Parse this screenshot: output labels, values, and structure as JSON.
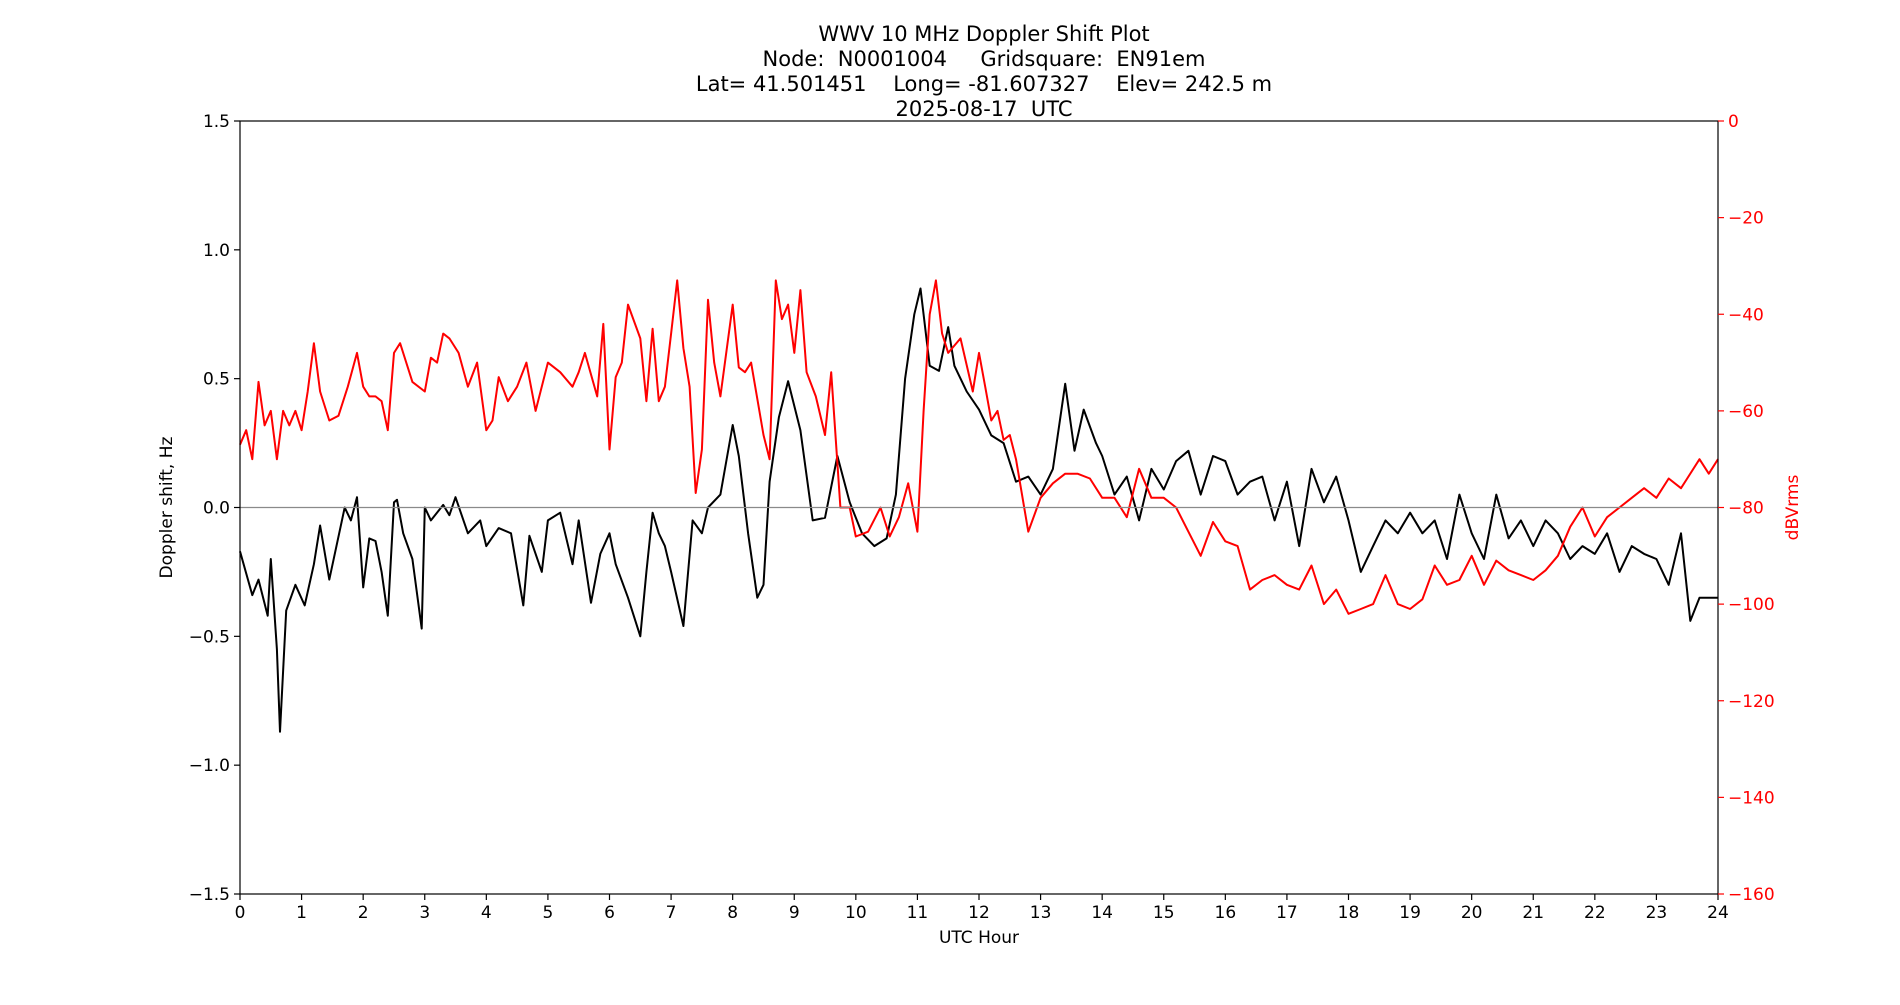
{
  "chart_data": {
    "type": "line",
    "title_lines": [
      "WWV 10 MHz Doppler Shift Plot",
      "Node:  N0001004     Gridsquare:  EN91em",
      "Lat= 41.501451    Long= -81.607327    Elev= 242.5 m",
      "2025-08-17  UTC"
    ],
    "xlabel": "UTC Hour",
    "ylabel_left": "Doppler shift, Hz",
    "ylabel_right": "dBVrms",
    "xlim": [
      0,
      24
    ],
    "ylim_left": [
      -1.5,
      1.5
    ],
    "ylim_right": [
      -160,
      0
    ],
    "x_ticks": [
      "0",
      "1",
      "2",
      "3",
      "4",
      "5",
      "6",
      "7",
      "8",
      "9",
      "10",
      "11",
      "12",
      "13",
      "14",
      "15",
      "16",
      "17",
      "18",
      "19",
      "20",
      "21",
      "22",
      "23",
      "24"
    ],
    "y_ticks_left": [
      "1.5",
      "1.0",
      "0.5",
      "0.0",
      "−0.5",
      "−1.0",
      "−1.5"
    ],
    "y_ticks_left_values": [
      1.5,
      1.0,
      0.5,
      0.0,
      -0.5,
      -1.0,
      -1.5
    ],
    "y_ticks_right": [
      "0",
      "−20",
      "−40",
      "−60",
      "−80",
      "−100",
      "−120",
      "−140",
      "−160"
    ],
    "y_ticks_right_values": [
      0,
      -20,
      -40,
      -60,
      -80,
      -100,
      -120,
      -140,
      -160
    ],
    "zero_line": 0,
    "series": [
      {
        "axis": "left",
        "color": "#000000",
        "x": [
          0,
          0.2,
          0.3,
          0.45,
          0.5,
          0.6,
          0.65,
          0.75,
          0.9,
          1.05,
          1.2,
          1.3,
          1.45,
          1.7,
          1.8,
          1.9,
          2.0,
          2.1,
          2.2,
          2.3,
          2.4,
          2.5,
          2.55,
          2.65,
          2.8,
          2.95,
          3.0,
          3.1,
          3.3,
          3.4,
          3.5,
          3.7,
          3.9,
          4.0,
          4.2,
          4.4,
          4.6,
          4.7,
          4.9,
          5.0,
          5.2,
          5.4,
          5.5,
          5.7,
          5.85,
          6.0,
          6.1,
          6.3,
          6.5,
          6.6,
          6.7,
          6.8,
          6.9,
          7.0,
          7.2,
          7.35,
          7.5,
          7.6,
          7.8,
          8.0,
          8.1,
          8.25,
          8.4,
          8.5,
          8.6,
          8.75,
          8.9,
          9.1,
          9.3,
          9.5,
          9.7,
          9.9,
          10.1,
          10.3,
          10.5,
          10.65,
          10.8,
          10.95,
          11.05,
          11.2,
          11.35,
          11.5,
          11.6,
          11.8,
          12.0,
          12.2,
          12.4,
          12.6,
          12.8,
          13.0,
          13.2,
          13.4,
          13.55,
          13.7,
          13.9,
          14.0,
          14.2,
          14.4,
          14.6,
          14.8,
          15.0,
          15.2,
          15.4,
          15.6,
          15.8,
          16.0,
          16.2,
          16.4,
          16.6,
          16.8,
          17.0,
          17.2,
          17.4,
          17.6,
          17.8,
          18.0,
          18.2,
          18.4,
          18.6,
          18.8,
          19.0,
          19.2,
          19.4,
          19.6,
          19.8,
          20.0,
          20.2,
          20.4,
          20.6,
          20.8,
          21.0,
          21.2,
          21.4,
          21.6,
          21.8,
          22.0,
          22.2,
          22.4,
          22.6,
          22.8,
          23.0,
          23.2,
          23.4,
          23.55,
          23.7,
          23.85,
          24.0
        ],
        "y": [
          -0.17,
          -0.34,
          -0.28,
          -0.42,
          -0.2,
          -0.55,
          -0.87,
          -0.4,
          -0.3,
          -0.38,
          -0.22,
          -0.07,
          -0.28,
          0.0,
          -0.05,
          0.04,
          -0.31,
          -0.12,
          -0.13,
          -0.25,
          -0.42,
          0.02,
          0.03,
          -0.1,
          -0.2,
          -0.47,
          0.0,
          -0.05,
          0.01,
          -0.03,
          0.04,
          -0.1,
          -0.05,
          -0.15,
          -0.08,
          -0.1,
          -0.38,
          -0.11,
          -0.25,
          -0.05,
          -0.02,
          -0.22,
          -0.05,
          -0.37,
          -0.18,
          -0.1,
          -0.22,
          -0.35,
          -0.5,
          -0.25,
          -0.02,
          -0.1,
          -0.15,
          -0.25,
          -0.46,
          -0.05,
          -0.1,
          0.0,
          0.05,
          0.32,
          0.2,
          -0.1,
          -0.35,
          -0.3,
          0.1,
          0.35,
          0.49,
          0.3,
          -0.05,
          -0.04,
          0.2,
          0.02,
          -0.1,
          -0.15,
          -0.12,
          0.05,
          0.5,
          0.75,
          0.85,
          0.55,
          0.53,
          0.7,
          0.55,
          0.45,
          0.38,
          0.28,
          0.25,
          0.1,
          0.12,
          0.05,
          0.15,
          0.48,
          0.22,
          0.38,
          0.25,
          0.2,
          0.05,
          0.12,
          -0.05,
          0.15,
          0.07,
          0.18,
          0.22,
          0.05,
          0.2,
          0.18,
          0.05,
          0.1,
          0.12,
          -0.05,
          0.1,
          -0.15,
          0.15,
          0.02,
          0.12,
          -0.05,
          -0.25,
          -0.15,
          -0.05,
          -0.1,
          -0.02,
          -0.1,
          -0.05,
          -0.2,
          0.05,
          -0.1,
          -0.2,
          0.05,
          -0.12,
          -0.05,
          -0.15,
          -0.05,
          -0.1,
          -0.2,
          -0.15,
          -0.18,
          -0.1,
          -0.25,
          -0.15,
          -0.18,
          -0.2,
          -0.3,
          -0.1,
          -0.44,
          -0.35,
          -0.35,
          -0.35
        ]
      },
      {
        "axis": "right",
        "color": "#ff0000",
        "x": [
          0,
          0.1,
          0.2,
          0.3,
          0.4,
          0.5,
          0.6,
          0.7,
          0.8,
          0.9,
          1.0,
          1.1,
          1.2,
          1.3,
          1.45,
          1.6,
          1.75,
          1.9,
          2.0,
          2.1,
          2.2,
          2.3,
          2.4,
          2.5,
          2.6,
          2.8,
          3.0,
          3.1,
          3.2,
          3.3,
          3.4,
          3.55,
          3.7,
          3.85,
          4.0,
          4.1,
          4.2,
          4.35,
          4.5,
          4.65,
          4.8,
          5.0,
          5.2,
          5.4,
          5.5,
          5.6,
          5.8,
          5.9,
          6.0,
          6.1,
          6.2,
          6.3,
          6.5,
          6.6,
          6.7,
          6.8,
          6.9,
          7.0,
          7.1,
          7.2,
          7.3,
          7.4,
          7.5,
          7.6,
          7.7,
          7.8,
          8.0,
          8.1,
          8.2,
          8.3,
          8.5,
          8.6,
          8.7,
          8.8,
          8.9,
          9.0,
          9.1,
          9.2,
          9.35,
          9.5,
          9.6,
          9.75,
          9.9,
          10.0,
          10.2,
          10.4,
          10.55,
          10.7,
          10.85,
          11.0,
          11.1,
          11.2,
          11.3,
          11.4,
          11.5,
          11.7,
          11.9,
          12.0,
          12.1,
          12.2,
          12.3,
          12.4,
          12.5,
          12.6,
          12.8,
          13.0,
          13.2,
          13.4,
          13.6,
          13.8,
          14.0,
          14.2,
          14.4,
          14.6,
          14.8,
          15.0,
          15.2,
          15.4,
          15.6,
          15.8,
          16.0,
          16.2,
          16.4,
          16.6,
          16.8,
          17.0,
          17.2,
          17.4,
          17.6,
          17.8,
          18.0,
          18.2,
          18.4,
          18.6,
          18.8,
          19.0,
          19.2,
          19.4,
          19.6,
          19.8,
          20.0,
          20.2,
          20.4,
          20.6,
          20.8,
          21.0,
          21.2,
          21.4,
          21.6,
          21.8,
          22.0,
          22.2,
          22.4,
          22.6,
          22.8,
          23.0,
          23.2,
          23.4,
          23.5,
          23.7,
          23.85,
          24.0
        ],
        "y": [
          -67,
          -64,
          -70,
          -54,
          -63,
          -60,
          -70,
          -60,
          -63,
          -60,
          -64,
          -56,
          -46,
          -56,
          -62,
          -61,
          -55,
          -48,
          -55,
          -57,
          -57,
          -58,
          -64,
          -48,
          -46,
          -54,
          -56,
          -49,
          -50,
          -44,
          -45,
          -48,
          -55,
          -50,
          -64,
          -62,
          -53,
          -58,
          -55,
          -50,
          -60,
          -50,
          -52,
          -55,
          -52,
          -48,
          -57,
          -42,
          -68,
          -53,
          -50,
          -38,
          -45,
          -58,
          -43,
          -58,
          -55,
          -44,
          -33,
          -47,
          -55,
          -77,
          -68,
          -37,
          -50,
          -57,
          -38,
          -51,
          -52,
          -50,
          -65,
          -70,
          -33,
          -41,
          -38,
          -48,
          -35,
          -52,
          -57,
          -65,
          -52,
          -80,
          -80,
          -86,
          -85,
          -80,
          -86,
          -82,
          -75,
          -85,
          -60,
          -40,
          -33,
          -44,
          -48,
          -45,
          -56,
          -48,
          -55,
          -62,
          -60,
          -66,
          -65,
          -70,
          -85,
          -78,
          -75,
          -73,
          -73,
          -74,
          -78,
          -78,
          -82,
          -72,
          -78,
          -78,
          -80,
          -85,
          -90,
          -83,
          -87,
          -88,
          -97,
          -95,
          -94,
          -96,
          -97,
          -92,
          -100,
          -97,
          -102,
          -101,
          -100,
          -94,
          -100,
          -101,
          -99,
          -92,
          -96,
          -95,
          -90,
          -96,
          -91,
          -93,
          -94,
          -95,
          -93,
          -90,
          -84,
          -80,
          -86,
          -82,
          -80,
          -78,
          -76,
          -78,
          -74,
          -76,
          -74,
          -70,
          -73,
          -70
        ]
      }
    ]
  }
}
